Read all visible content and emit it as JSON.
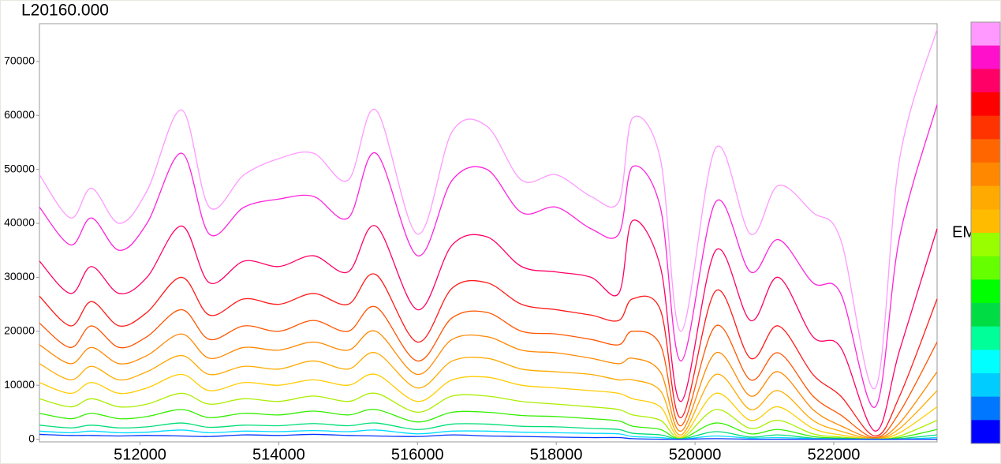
{
  "chart_data": {
    "type": "line",
    "title": "L20160.000",
    "y_label": "EM",
    "x": [
      510550,
      511000,
      511300,
      511700,
      512100,
      512600,
      513000,
      513500,
      514000,
      514500,
      515000,
      515400,
      516000,
      516500,
      517000,
      517500,
      518000,
      518500,
      518900,
      519100,
      519500,
      519800,
      520300,
      520800,
      521200,
      521700,
      522100,
      522600,
      522950,
      523490
    ],
    "xlim": [
      510550,
      523490
    ],
    "xticks": [
      512000,
      514000,
      516000,
      518000,
      520000,
      522000
    ],
    "ylim": [
      -500,
      77000
    ],
    "yticks": [
      0,
      10000,
      20000,
      30000,
      40000,
      50000,
      60000,
      70000
    ],
    "series": [
      {
        "color": "#ff99ff",
        "values": [
          49000,
          41000,
          46500,
          40000,
          46000,
          61000,
          43000,
          49000,
          52000,
          53000,
          48000,
          61000,
          38000,
          57000,
          58000,
          48000,
          49000,
          45000,
          44000,
          59500,
          52000,
          20000,
          54000,
          38000,
          47000,
          42000,
          37000,
          9500,
          52000,
          76000
        ]
      },
      {
        "color": "#ff22dd",
        "values": [
          43000,
          36000,
          41000,
          35000,
          40000,
          53000,
          38000,
          43000,
          44500,
          45000,
          41000,
          53000,
          34000,
          48000,
          50000,
          42000,
          43000,
          39000,
          38000,
          50500,
          43000,
          14500,
          44000,
          31000,
          37000,
          29000,
          27000,
          6000,
          37500,
          62000
        ]
      },
      {
        "color": "#ff0066",
        "values": [
          33000,
          27000,
          32000,
          27000,
          30000,
          39500,
          29000,
          33000,
          32000,
          34000,
          31000,
          39500,
          24000,
          36000,
          37500,
          32000,
          31000,
          30000,
          27000,
          40500,
          32000,
          7000,
          35000,
          22000,
          30000,
          19000,
          17000,
          1500,
          16500,
          39000
        ]
      },
      {
        "color": "#ff1a1a",
        "values": [
          26500,
          21000,
          25500,
          21000,
          23500,
          30000,
          23000,
          26000,
          25000,
          27000,
          25000,
          30500,
          18000,
          28000,
          29000,
          25000,
          24000,
          23000,
          22000,
          26000,
          24000,
          4000,
          27500,
          15000,
          21000,
          12000,
          8000,
          600,
          8000,
          26000
        ]
      },
      {
        "color": "#ff5500",
        "values": [
          21500,
          17000,
          21000,
          17000,
          19000,
          24000,
          18500,
          21000,
          20000,
          22000,
          20000,
          24500,
          14500,
          22500,
          23500,
          20000,
          19500,
          18500,
          17500,
          20000,
          17500,
          2500,
          21000,
          11000,
          16000,
          8000,
          4500,
          300,
          5000,
          18000
        ]
      },
      {
        "color": "#ff8800",
        "values": [
          17500,
          14000,
          17000,
          14000,
          15500,
          19500,
          15000,
          17000,
          16500,
          18000,
          16500,
          20000,
          12000,
          18500,
          19000,
          16500,
          16000,
          15000,
          14000,
          15000,
          12500,
          1500,
          16000,
          8000,
          12500,
          5500,
          2500,
          200,
          3000,
          12500
        ]
      },
      {
        "color": "#ffaa00",
        "values": [
          14000,
          11000,
          13500,
          11000,
          12500,
          15500,
          12000,
          13500,
          13000,
          14500,
          13000,
          16000,
          9500,
          14500,
          15000,
          13000,
          12500,
          12000,
          11000,
          11000,
          9000,
          800,
          12000,
          5500,
          9000,
          3500,
          1500,
          100,
          2000,
          9000
        ]
      },
      {
        "color": "#ffcc00",
        "values": [
          10500,
          8500,
          10500,
          8500,
          9500,
          12000,
          9000,
          10500,
          10000,
          11000,
          10000,
          12000,
          7000,
          11000,
          11500,
          10000,
          9500,
          9000,
          8500,
          7500,
          6000,
          400,
          8500,
          3500,
          6000,
          2000,
          800,
          50,
          1200,
          6000
        ]
      },
      {
        "color": "#aaee00",
        "values": [
          7500,
          6000,
          7500,
          6000,
          6500,
          8500,
          6500,
          7500,
          7000,
          8000,
          7000,
          8500,
          5000,
          8000,
          8000,
          7000,
          6500,
          6000,
          5500,
          4500,
          3500,
          200,
          5500,
          2000,
          3500,
          1000,
          400,
          0,
          600,
          3500
        ]
      },
      {
        "color": "#33ee00",
        "values": [
          4800,
          3800,
          4800,
          3800,
          4200,
          5500,
          4000,
          4800,
          4500,
          5200,
          4500,
          5500,
          3200,
          5000,
          5000,
          4400,
          4200,
          3800,
          3400,
          2400,
          1800,
          100,
          3000,
          1000,
          1800,
          500,
          200,
          0,
          300,
          1800
        ]
      },
      {
        "color": "#00dd77",
        "values": [
          2600,
          2100,
          2600,
          2100,
          2300,
          3000,
          2200,
          2600,
          2500,
          2900,
          2500,
          3000,
          1800,
          2800,
          2800,
          2400,
          2300,
          2000,
          1800,
          1100,
          800,
          50,
          1400,
          400,
          800,
          200,
          100,
          0,
          100,
          800
        ]
      },
      {
        "color": "#00ddff",
        "values": [
          1500,
          1200,
          1500,
          1200,
          1300,
          1700,
          1200,
          1500,
          1400,
          1600,
          1400,
          1700,
          1000,
          1500,
          1500,
          1300,
          1200,
          1100,
          1000,
          500,
          300,
          0,
          600,
          200,
          300,
          100,
          0,
          0,
          0,
          300
        ]
      },
      {
        "color": "#0033ff",
        "values": [
          900,
          700,
          700,
          600,
          700,
          600,
          500,
          800,
          700,
          900,
          700,
          600,
          500,
          800,
          600,
          500,
          400,
          300,
          300,
          100,
          0,
          0,
          100,
          0,
          0,
          0,
          0,
          0,
          0,
          0
        ]
      }
    ],
    "colorbar": [
      "#ff99ff",
      "#ff11cc",
      "#ff0066",
      "#ff0000",
      "#ff3300",
      "#ff6600",
      "#ff8800",
      "#ffaa00",
      "#ffbb00",
      "#99ff00",
      "#66ff00",
      "#00ff00",
      "#00dd44",
      "#00ff99",
      "#00ffff",
      "#00ccff",
      "#0077ff",
      "#0000ff"
    ],
    "grid": false
  }
}
